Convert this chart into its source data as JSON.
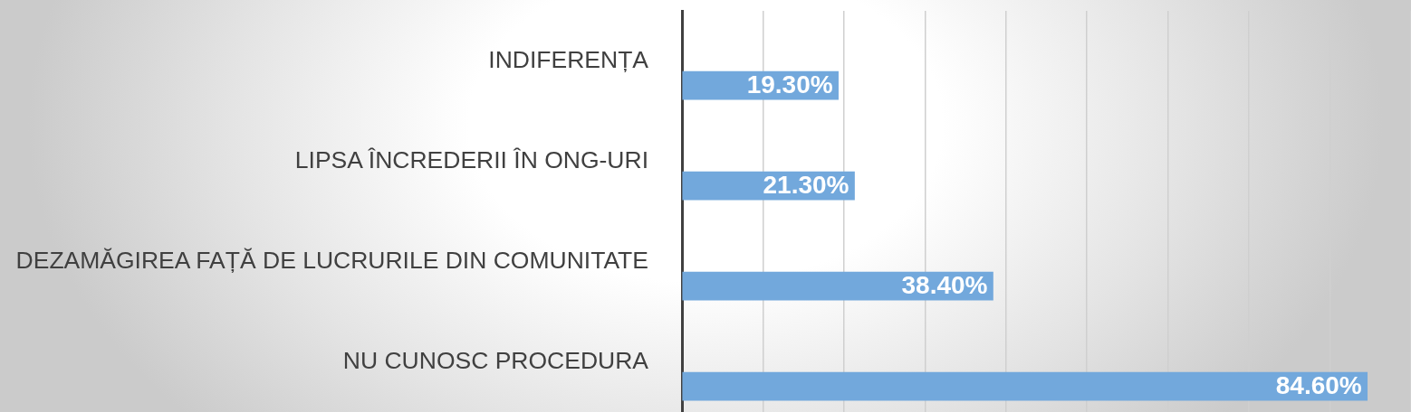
{
  "chart_data": {
    "type": "bar",
    "orientation": "horizontal",
    "categories": [
      "INDIFERENȚA",
      "LIPSA ÎNCREDERII ÎN ONG-URI",
      "DEZAMĂGIREA FAȚĂ DE LUCRURILE DIN COMUNITATE",
      "NU CUNOSC PROCEDURA"
    ],
    "values": [
      19.3,
      21.3,
      38.4,
      84.6
    ],
    "value_labels": [
      "19.30%",
      "21.30%",
      "38.40%",
      "84.60%"
    ],
    "color": "#72a8dc",
    "grid": "x",
    "tick_labels": "y"
  }
}
